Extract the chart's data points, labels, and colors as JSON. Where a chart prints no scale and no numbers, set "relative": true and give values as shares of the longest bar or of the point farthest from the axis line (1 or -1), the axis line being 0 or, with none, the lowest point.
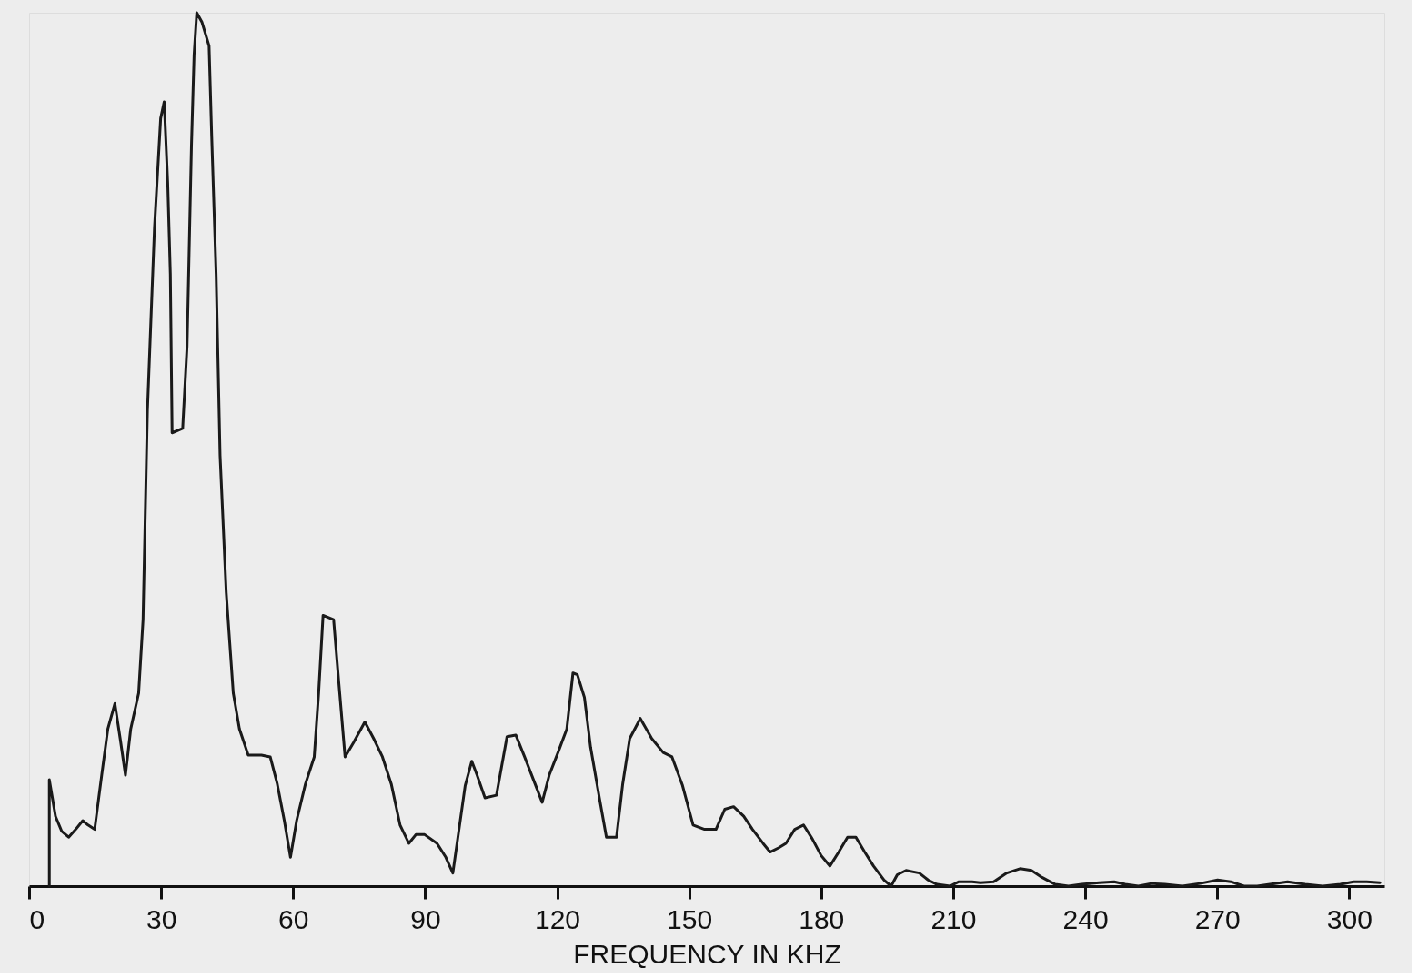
{
  "chart_data": {
    "type": "line",
    "relative": true,
    "xlabel": "FREQUENCY  IN  KHZ",
    "xlim": [
      0,
      308
    ],
    "xticks": [
      0,
      30,
      60,
      90,
      120,
      150,
      180,
      210,
      240,
      270,
      300
    ],
    "grid": false,
    "marker": "none",
    "line_style": "solid",
    "series": [
      {
        "color": "#1a1a1a",
        "x": [
          4.6,
          4.6,
          6.0,
          7.4,
          9.0,
          10.6,
          12.2,
          13.4,
          14.9,
          16.5,
          17.9,
          19.5,
          20.7,
          21.9,
          23.1,
          24.9,
          25.9,
          26.9,
          28.5,
          29.9,
          30.7,
          31.5,
          32.1,
          32.5,
          34.9,
          35.9,
          36.9,
          37.5,
          38.1,
          39.3,
          40.9,
          41.5,
          42.5,
          43.4,
          44.8,
          46.4,
          47.8,
          49.8,
          52.8,
          54.8,
          56.4,
          58.0,
          59.4,
          60.8,
          62.8,
          64.8,
          65.8,
          66.8,
          69.2,
          70.4,
          71.8,
          73.7,
          76.3,
          78.3,
          80.3,
          82.3,
          84.3,
          86.3,
          87.9,
          89.9,
          92.7,
          94.7,
          96.3,
          97.7,
          99.1,
          100.6,
          101.8,
          103.6,
          106.2,
          108.6,
          110.6,
          112.6,
          114.6,
          116.6,
          118.2,
          120.2,
          122.2,
          123.6,
          124.6,
          126.2,
          127.6,
          129.6,
          131.2,
          133.5,
          134.9,
          136.5,
          138.9,
          141.5,
          144.1,
          146.1,
          148.5,
          150.9,
          153.5,
          156.1,
          158.1,
          160.1,
          162.4,
          164.4,
          166.8,
          168.4,
          170.4,
          172.0,
          174.0,
          176.0,
          178.0,
          180.0,
          182.0,
          184.0,
          186.0,
          187.9,
          189.9,
          191.9,
          194.3,
          195.9,
          197.3,
          199.3,
          202.3,
          204.3,
          206.3,
          209.3,
          211.3,
          214.3,
          216.2,
          219.2,
          222.2,
          225.2,
          227.8,
          230.2,
          233.2,
          236.2,
          239.2,
          243.2,
          246.6,
          249.1,
          252.1,
          255.1,
          258.1,
          262.1,
          266.1,
          270.1,
          273.1,
          276.1,
          279.1,
          282.0,
          286.0,
          290.0,
          294.0,
          298.0,
          301.0,
          304.0,
          307.0
        ],
        "values": [
          0,
          0.122,
          0.08,
          0.063,
          0.056,
          0.065,
          0.075,
          0.07,
          0.065,
          0.127,
          0.18,
          0.209,
          0.169,
          0.127,
          0.18,
          0.221,
          0.305,
          0.545,
          0.754,
          0.879,
          0.898,
          0.806,
          0.701,
          0.519,
          0.524,
          0.618,
          0.848,
          0.952,
          1,
          0.989,
          0.962,
          0.858,
          0.701,
          0.493,
          0.336,
          0.221,
          0.18,
          0.15,
          0.15,
          0.148,
          0.117,
          0.075,
          0.033,
          0.075,
          0.117,
          0.148,
          0.221,
          0.31,
          0.305,
          0.232,
          0.148,
          0.164,
          0.188,
          0.169,
          0.148,
          0.117,
          0.07,
          0.049,
          0.059,
          0.059,
          0.049,
          0.033,
          0.015,
          0.065,
          0.115,
          0.143,
          0.127,
          0.101,
          0.104,
          0.171,
          0.173,
          0.148,
          0.122,
          0.096,
          0.127,
          0.153,
          0.18,
          0.244,
          0.242,
          0.216,
          0.159,
          0.101,
          0.056,
          0.056,
          0.117,
          0.169,
          0.192,
          0.169,
          0.153,
          0.148,
          0.115,
          0.07,
          0.065,
          0.065,
          0.088,
          0.091,
          0.08,
          0.065,
          0.049,
          0.039,
          0.044,
          0.049,
          0.065,
          0.07,
          0.054,
          0.035,
          0.023,
          0.039,
          0.056,
          0.056,
          0.039,
          0.023,
          0.007,
          0,
          0.013,
          0.018,
          0.015,
          0.007,
          0.002,
          0,
          0.005,
          0.005,
          0.004,
          0.005,
          0.015,
          0.02,
          0.018,
          0.01,
          0.002,
          0,
          0.002,
          0.004,
          0.005,
          0.002,
          0,
          0.003,
          0.002,
          0,
          0.003,
          0.007,
          0.005,
          0,
          0,
          0.002,
          0.005,
          0.002,
          0,
          0.002,
          0.005,
          0.005,
          0.004
        ]
      }
    ]
  }
}
